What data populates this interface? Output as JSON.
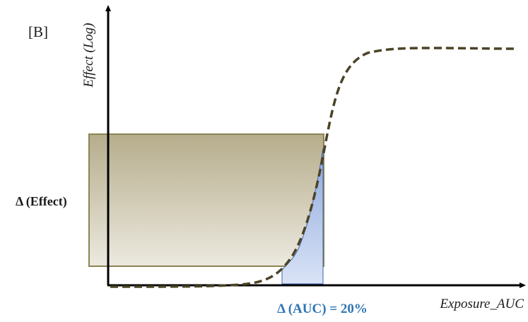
{
  "panel_label": "[B]",
  "y_axis_label": "Effect (Log)",
  "x_axis_label": "Exposure_AUC",
  "effect_delta_label": "Δ (Effect)",
  "auc_delta_label": "Δ (AUC) = 20%",
  "colors": {
    "axis": "#000000",
    "curve": "#4a4326",
    "effect_band_stroke": "#8b8452",
    "effect_band_fill_top": "#b6ad8c",
    "effect_band_fill_bottom": "#ece9df",
    "auc_fill_top": "#8ea8dc",
    "auc_fill_bottom": "#d9e3f6",
    "auc_stroke": "#3f64b0",
    "auc_label": "#2e74b5",
    "text": "#1a1a1a"
  }
}
